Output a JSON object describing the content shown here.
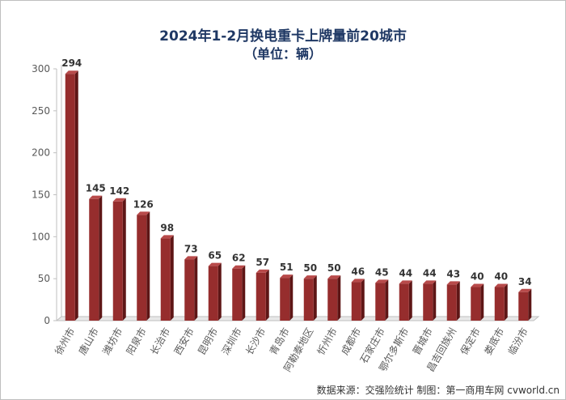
{
  "title": "2024年1-2月换电重卡上牌量前20城市",
  "subtitle": "（单位：辆）",
  "source": "数据来源：交强险统计   制图：第一商用车网 cvworld.cn",
  "colors": {
    "bar_front": "#962d2d",
    "bar_top": "#b84a4a",
    "bar_side": "#5e1616",
    "axis": "#bfbfbf",
    "title": "#1f3864"
  },
  "chart_data": {
    "type": "bar",
    "title": "2024年1-2月换电重卡上牌量前20城市",
    "subtitle": "（单位：辆）",
    "categories": [
      "徐州市",
      "唐山市",
      "潍坊市",
      "阳泉市",
      "长治市",
      "西安市",
      "昆明市",
      "深圳市",
      "长沙市",
      "青岛市",
      "阿勒泰地区",
      "忻州市",
      "成都市",
      "石家庄市",
      "鄂尔多斯市",
      "晋城市",
      "昌吉回族州",
      "保定市",
      "娄底市",
      "临汾市"
    ],
    "values": [
      294,
      145,
      142,
      126,
      98,
      73,
      65,
      62,
      57,
      51,
      50,
      50,
      46,
      45,
      44,
      44,
      43,
      40,
      40,
      34
    ],
    "ylim": [
      0,
      300
    ],
    "yticks": [
      0,
      50,
      100,
      150,
      200,
      250,
      300
    ],
    "xlabel": "",
    "ylabel": "",
    "grid": false,
    "data_labels": true
  }
}
